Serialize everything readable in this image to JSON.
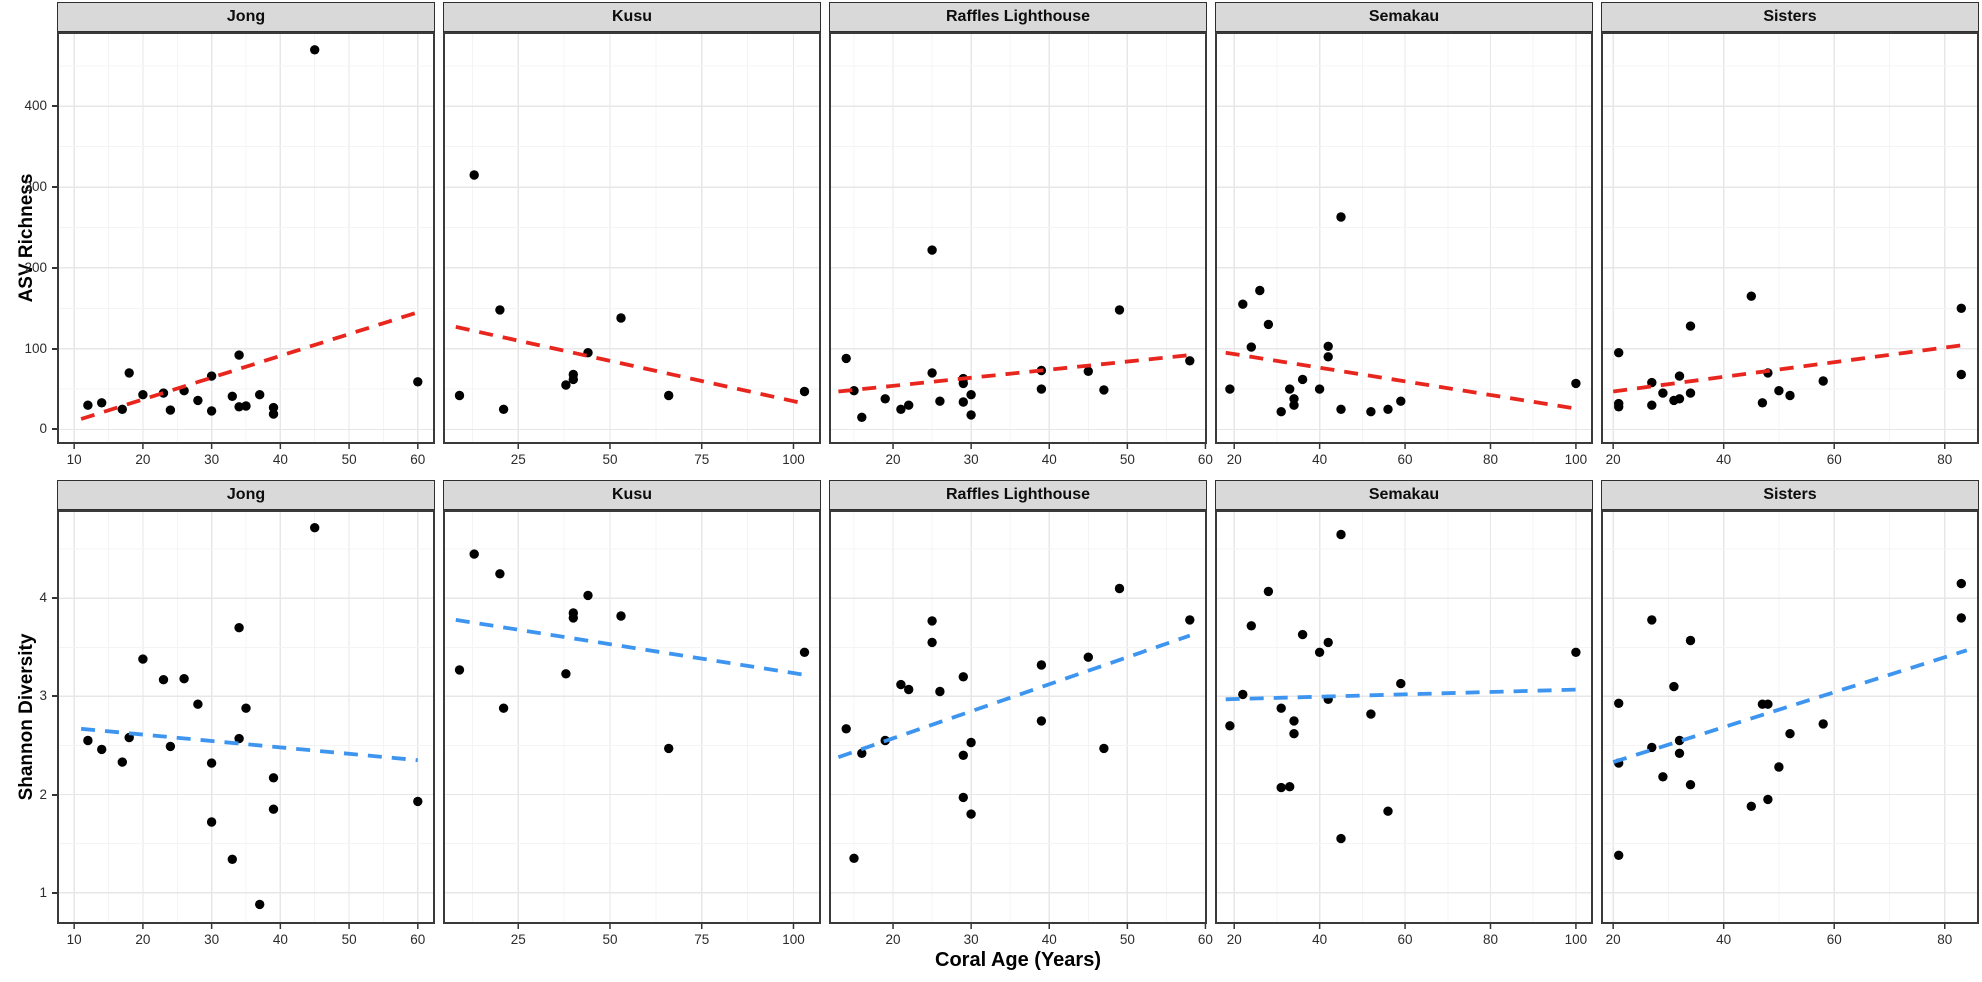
{
  "chart_data": {
    "type": "scatter",
    "layout": "facet_grid_2rows_x_5cols",
    "xlabel": "Coral Age (Years)",
    "facet_columns": [
      "Jong",
      "Kusu",
      "Raffles Lighthouse",
      "Semakau",
      "Sisters"
    ],
    "grid": "on",
    "legend": "none",
    "colors": {
      "point": "#000000",
      "strip_bg": "#d9d9d9",
      "strip_border": "#2f2f2f",
      "panel_border": "#3a3a3a",
      "grid_major": "#e7e7e7",
      "grid_minor": "#f4f4f4",
      "tick_text": "#2b2b2b",
      "tick_mark": "#333333",
      "trend_richness": "#e8261e",
      "trend_shannon": "#3d95f0"
    },
    "rows": [
      {
        "ylabel": "ASV Richness",
        "ylim": [
          -18,
          492
        ],
        "yticks": [
          0,
          100,
          200,
          300,
          400
        ],
        "y_minor_step": 50,
        "trend": {
          "color": "#e8261e",
          "style": "dashed"
        },
        "panels": [
          {
            "facet": "Jong",
            "xlim": [
              7.5,
              62.5
            ],
            "xticks": [
              10,
              20,
              30,
              40,
              50,
              60
            ],
            "x_minor_step": 5,
            "points": [
              [
                12,
                30
              ],
              [
                14,
                33
              ],
              [
                17,
                25
              ],
              [
                18,
                70
              ],
              [
                20,
                43
              ],
              [
                23,
                45
              ],
              [
                24,
                24
              ],
              [
                26,
                48
              ],
              [
                28,
                36
              ],
              [
                30,
                66
              ],
              [
                30,
                23
              ],
              [
                33,
                41
              ],
              [
                34,
                92
              ],
              [
                34,
                28
              ],
              [
                35,
                29
              ],
              [
                37,
                43
              ],
              [
                39,
                27
              ],
              [
                39,
                19
              ],
              [
                45,
                470
              ],
              [
                60,
                59
              ]
            ],
            "trend_line": {
              "x1": 11,
              "y1": 13,
              "x2": 60,
              "y2": 145
            }
          },
          {
            "facet": "Kusu",
            "xlim": [
              4.5,
              107.5
            ],
            "xticks": [
              25,
              50,
              75,
              100
            ],
            "x_minor_step": 12.5,
            "points": [
              [
                9,
                42
              ],
              [
                13,
                315
              ],
              [
                20,
                148
              ],
              [
                21,
                25
              ],
              [
                38,
                55
              ],
              [
                40,
                68
              ],
              [
                40,
                62
              ],
              [
                44,
                95
              ],
              [
                53,
                138
              ],
              [
                66,
                42
              ],
              [
                103,
                47
              ]
            ],
            "trend_line": {
              "x1": 8,
              "y1": 127,
              "x2": 103,
              "y2": 32
            }
          },
          {
            "facet": "Raffles Lighthouse",
            "xlim": [
              11.8,
              60.2
            ],
            "xticks": [
              20,
              30,
              40,
              50,
              60
            ],
            "x_minor_step": 5,
            "points": [
              [
                14,
                88
              ],
              [
                15,
                48
              ],
              [
                16,
                15
              ],
              [
                19,
                38
              ],
              [
                21,
                25
              ],
              [
                22,
                30
              ],
              [
                25,
                222
              ],
              [
                25,
                70
              ],
              [
                26,
                35
              ],
              [
                29,
                63
              ],
              [
                29,
                57
              ],
              [
                29,
                34
              ],
              [
                30,
                43
              ],
              [
                30,
                18
              ],
              [
                39,
                73
              ],
              [
                39,
                50
              ],
              [
                45,
                72
              ],
              [
                47,
                49
              ],
              [
                49,
                148
              ],
              [
                58,
                85
              ]
            ],
            "trend_line": {
              "x1": 13,
              "y1": 47,
              "x2": 58,
              "y2": 92
            }
          },
          {
            "facet": "Semakau",
            "xlim": [
              15.5,
              104
            ],
            "xticks": [
              20,
              40,
              60,
              80,
              100
            ],
            "x_minor_step": 10,
            "points": [
              [
                19,
                50
              ],
              [
                22,
                155
              ],
              [
                24,
                102
              ],
              [
                26,
                172
              ],
              [
                28,
                130
              ],
              [
                31,
                22
              ],
              [
                33,
                50
              ],
              [
                34,
                38
              ],
              [
                34,
                30
              ],
              [
                36,
                62
              ],
              [
                40,
                50
              ],
              [
                42,
                103
              ],
              [
                42,
                90
              ],
              [
                45,
                263
              ],
              [
                45,
                25
              ],
              [
                52,
                22
              ],
              [
                56,
                25
              ],
              [
                59,
                35
              ],
              [
                100,
                57
              ]
            ],
            "trend_line": {
              "x1": 18,
              "y1": 95,
              "x2": 101,
              "y2": 25
            }
          },
          {
            "facet": "Sisters",
            "xlim": [
              17.8,
              86.2
            ],
            "xticks": [
              20,
              40,
              60,
              80
            ],
            "x_minor_step": 10,
            "points": [
              [
                21,
                95
              ],
              [
                21,
                32
              ],
              [
                21,
                28
              ],
              [
                27,
                58
              ],
              [
                27,
                30
              ],
              [
                29,
                45
              ],
              [
                31,
                36
              ],
              [
                32,
                38
              ],
              [
                32,
                66
              ],
              [
                34,
                128
              ],
              [
                34,
                45
              ],
              [
                45,
                165
              ],
              [
                47,
                33
              ],
              [
                48,
                70
              ],
              [
                50,
                48
              ],
              [
                52,
                42
              ],
              [
                58,
                60
              ],
              [
                83,
                150
              ],
              [
                83,
                68
              ]
            ],
            "trend_line": {
              "x1": 20,
              "y1": 47,
              "x2": 84,
              "y2": 105
            }
          }
        ]
      },
      {
        "ylabel": "Shannon Diversity",
        "ylim": [
          0.68,
          4.9
        ],
        "yticks": [
          1,
          2,
          3,
          4
        ],
        "y_minor_step": 0.5,
        "trend": {
          "color": "#3d95f0",
          "style": "dashed"
        },
        "panels": [
          {
            "facet": "Jong",
            "xlim": [
              7.5,
              62.5
            ],
            "xticks": [
              10,
              20,
              30,
              40,
              50,
              60
            ],
            "x_minor_step": 5,
            "points": [
              [
                12,
                2.55
              ],
              [
                14,
                2.46
              ],
              [
                17,
                2.33
              ],
              [
                18,
                2.58
              ],
              [
                20,
                3.38
              ],
              [
                23,
                3.17
              ],
              [
                24,
                2.49
              ],
              [
                26,
                3.18
              ],
              [
                28,
                2.92
              ],
              [
                30,
                2.32
              ],
              [
                30,
                1.72
              ],
              [
                33,
                1.34
              ],
              [
                34,
                3.7
              ],
              [
                34,
                2.57
              ],
              [
                35,
                2.88
              ],
              [
                37,
                0.88
              ],
              [
                39,
                2.17
              ],
              [
                39,
                1.85
              ],
              [
                45,
                4.72
              ],
              [
                60,
                1.93
              ]
            ],
            "trend_line": {
              "x1": 11,
              "y1": 2.67,
              "x2": 60,
              "y2": 2.35
            }
          },
          {
            "facet": "Kusu",
            "xlim": [
              4.5,
              107.5
            ],
            "xticks": [
              25,
              50,
              75,
              100
            ],
            "x_minor_step": 12.5,
            "points": [
              [
                9,
                3.27
              ],
              [
                13,
                4.45
              ],
              [
                20,
                4.25
              ],
              [
                21,
                2.88
              ],
              [
                38,
                3.23
              ],
              [
                40,
                3.85
              ],
              [
                40,
                3.8
              ],
              [
                44,
                4.03
              ],
              [
                53,
                3.82
              ],
              [
                66,
                2.47
              ],
              [
                103,
                3.45
              ]
            ],
            "trend_line": {
              "x1": 8,
              "y1": 3.78,
              "x2": 103,
              "y2": 3.22
            }
          },
          {
            "facet": "Raffles Lighthouse",
            "xlim": [
              11.8,
              60.2
            ],
            "xticks": [
              20,
              30,
              40,
              50,
              60
            ],
            "x_minor_step": 5,
            "points": [
              [
                14,
                2.67
              ],
              [
                15,
                1.35
              ],
              [
                16,
                2.42
              ],
              [
                19,
                2.55
              ],
              [
                21,
                3.12
              ],
              [
                22,
                3.07
              ],
              [
                25,
                3.77
              ],
              [
                25,
                3.55
              ],
              [
                26,
                3.05
              ],
              [
                29,
                3.2
              ],
              [
                29,
                2.4
              ],
              [
                29,
                1.97
              ],
              [
                30,
                2.53
              ],
              [
                30,
                1.8
              ],
              [
                39,
                3.32
              ],
              [
                39,
                2.75
              ],
              [
                45,
                3.4
              ],
              [
                47,
                2.47
              ],
              [
                49,
                4.1
              ],
              [
                58,
                3.78
              ]
            ],
            "trend_line": {
              "x1": 13,
              "y1": 2.38,
              "x2": 58,
              "y2": 3.62
            }
          },
          {
            "facet": "Semakau",
            "xlim": [
              15.5,
              104
            ],
            "xticks": [
              20,
              40,
              60,
              80,
              100
            ],
            "x_minor_step": 10,
            "points": [
              [
                19,
                2.7
              ],
              [
                22,
                3.02
              ],
              [
                24,
                3.72
              ],
              [
                28,
                4.07
              ],
              [
                31,
                2.88
              ],
              [
                31,
                2.07
              ],
              [
                33,
                2.08
              ],
              [
                34,
                2.75
              ],
              [
                34,
                2.62
              ],
              [
                36,
                3.63
              ],
              [
                40,
                3.45
              ],
              [
                42,
                3.55
              ],
              [
                42,
                2.97
              ],
              [
                45,
                4.65
              ],
              [
                45,
                1.55
              ],
              [
                52,
                2.82
              ],
              [
                56,
                1.83
              ],
              [
                59,
                3.13
              ],
              [
                100,
                3.45
              ]
            ],
            "trend_line": {
              "x1": 18,
              "y1": 2.97,
              "x2": 101,
              "y2": 3.07
            }
          },
          {
            "facet": "Sisters",
            "xlim": [
              17.8,
              86.2
            ],
            "xticks": [
              20,
              40,
              60,
              80
            ],
            "x_minor_step": 10,
            "points": [
              [
                21,
                2.93
              ],
              [
                21,
                2.32
              ],
              [
                21,
                1.38
              ],
              [
                27,
                3.78
              ],
              [
                27,
                2.48
              ],
              [
                29,
                2.18
              ],
              [
                31,
                3.1
              ],
              [
                32,
                2.55
              ],
              [
                32,
                2.42
              ],
              [
                34,
                3.57
              ],
              [
                34,
                2.1
              ],
              [
                45,
                1.88
              ],
              [
                47,
                2.92
              ],
              [
                48,
                2.92
              ],
              [
                48,
                1.95
              ],
              [
                50,
                2.28
              ],
              [
                52,
                2.62
              ],
              [
                58,
                2.72
              ],
              [
                83,
                4.15
              ],
              [
                83,
                3.8
              ]
            ],
            "trend_line": {
              "x1": 20,
              "y1": 2.33,
              "x2": 84,
              "y2": 3.47
            }
          }
        ]
      }
    ]
  }
}
